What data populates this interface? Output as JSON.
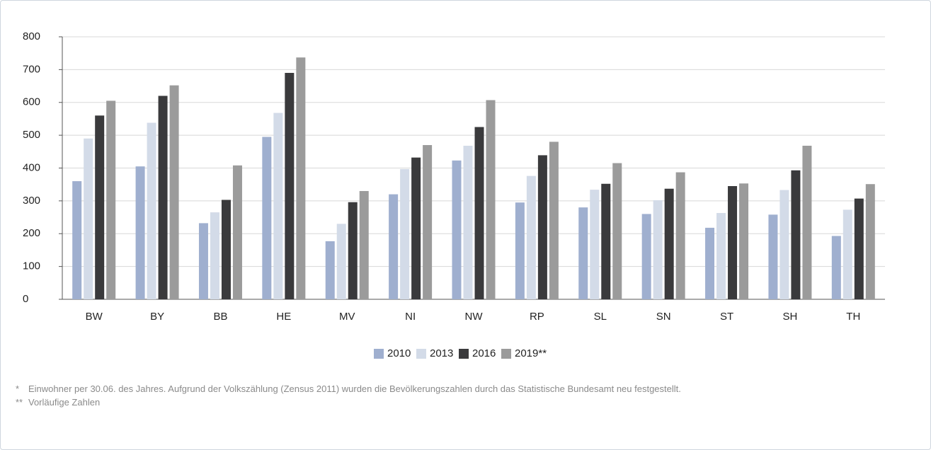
{
  "chart_data": {
    "type": "bar",
    "categories": [
      "BW",
      "BY",
      "BB",
      "HE",
      "MV",
      "NI",
      "NW",
      "RP",
      "SL",
      "SN",
      "ST",
      "SH",
      "TH"
    ],
    "series": [
      {
        "name": "2010",
        "color": "#9fafcf",
        "values": [
          360,
          405,
          232,
          495,
          177,
          320,
          423,
          295,
          280,
          260,
          218,
          258,
          193
        ]
      },
      {
        "name": "2013",
        "color": "#d3dbe8",
        "values": [
          490,
          538,
          265,
          568,
          230,
          397,
          468,
          376,
          334,
          302,
          263,
          333,
          273
        ]
      },
      {
        "name": "2016",
        "color": "#3a3a3c",
        "values": [
          560,
          620,
          303,
          690,
          296,
          432,
          525,
          439,
          352,
          337,
          345,
          393,
          307
        ]
      },
      {
        "name": "2019**",
        "color": "#9b9b9b",
        "values": [
          605,
          652,
          408,
          737,
          330,
          470,
          607,
          480,
          415,
          387,
          353,
          468,
          351
        ]
      }
    ],
    "ylim": [
      0,
      800
    ],
    "yticks": [
      0,
      100,
      200,
      300,
      400,
      500,
      600,
      700,
      800
    ],
    "grid": true,
    "legend": "bottom",
    "notes": [
      {
        "marker": "*",
        "text": "Einwohner per 30.06. des Jahres. Aufgrund der Volkszählung (Zensus 2011) wurden die Bevölkerungszahlen durch das Statistische Bundesamt neu festgestellt."
      },
      {
        "marker": "**",
        "text": "Vorläufige Zahlen"
      }
    ]
  }
}
